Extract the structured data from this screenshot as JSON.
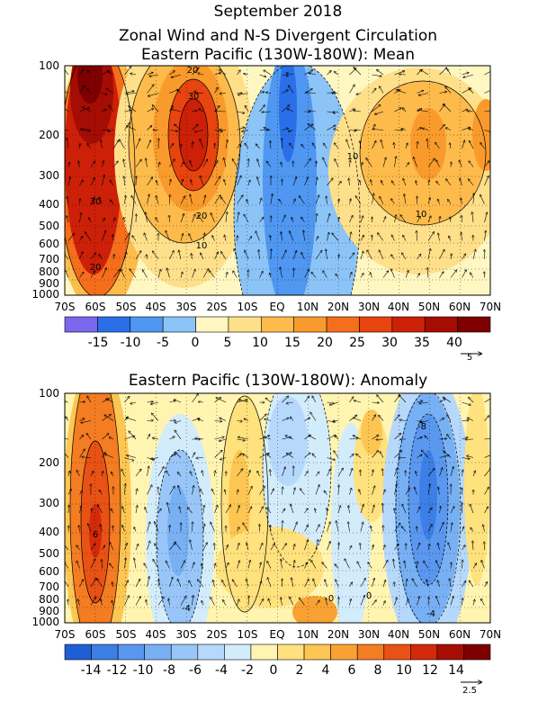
{
  "title": "September 2018",
  "chart_data": [
    {
      "type": "heatmap",
      "title": "Zonal Wind and N-S Divergent Circulation",
      "subtitle": "Eastern Pacific (130W-180W): Mean",
      "x_labels": [
        "70S",
        "60S",
        "50S",
        "40S",
        "30S",
        "20S",
        "10S",
        "EQ",
        "10N",
        "20N",
        "30N",
        "40N",
        "50N",
        "60N",
        "70N"
      ],
      "y_labels": [
        "100",
        "200",
        "300",
        "400",
        "500",
        "600",
        "700",
        "800",
        "900",
        "1000"
      ],
      "colorbar_ticks": [
        "-15",
        "-10",
        "-5",
        "0",
        "5",
        "10",
        "15",
        "20",
        "25",
        "30",
        "35",
        "40"
      ],
      "colorbar_values": [
        -20,
        -15,
        -10,
        -5,
        0,
        5,
        10,
        15,
        20,
        25,
        30,
        35,
        40,
        45
      ],
      "colors": [
        "#7b68ee",
        "#2b6fe8",
        "#4f97f0",
        "#8cc4f7",
        "#fff7c2",
        "#ffe08a",
        "#fdbb4c",
        "#f99a2c",
        "#f56e1c",
        "#e8440f",
        "#cc2008",
        "#a50c04",
        "#7e0000"
      ],
      "contour_labels": [
        "20",
        "30",
        "10",
        "30",
        "20",
        "10",
        "20",
        "10",
        "10"
      ],
      "vector_scale": "5"
    },
    {
      "type": "heatmap",
      "subtitle": "Eastern Pacific (130W-180W): Anomaly",
      "x_labels": [
        "70S",
        "60S",
        "50S",
        "40S",
        "30S",
        "20S",
        "10S",
        "EQ",
        "10N",
        "20N",
        "30N",
        "40N",
        "50N",
        "60N",
        "70N"
      ],
      "y_labels": [
        "100",
        "200",
        "300",
        "400",
        "500",
        "600",
        "700",
        "800",
        "900",
        "1000"
      ],
      "colorbar_ticks": [
        "-14",
        "-12",
        "-10",
        "-8",
        "-6",
        "-4",
        "-2",
        "0",
        "2",
        "4",
        "6",
        "8",
        "10",
        "12",
        "14"
      ],
      "colorbar_values": [
        -16,
        -14,
        -12,
        -10,
        -8,
        -6,
        -4,
        -2,
        0,
        2,
        4,
        6,
        8,
        10,
        12,
        14,
        16
      ],
      "colors": [
        "#1f5fd6",
        "#3c7fe6",
        "#5a97ef",
        "#78b0f4",
        "#98c6f8",
        "#b6d9fb",
        "#d3ecfc",
        "#fff4b0",
        "#ffe17d",
        "#fdc652",
        "#f9a233",
        "#f47c22",
        "#e85215",
        "#d42a0b",
        "#a80e04",
        "#7e0000"
      ],
      "contour_labels": [
        "-8",
        "-4",
        "6",
        "0",
        "0",
        "-4"
      ],
      "vector_scale": "2.5"
    }
  ]
}
